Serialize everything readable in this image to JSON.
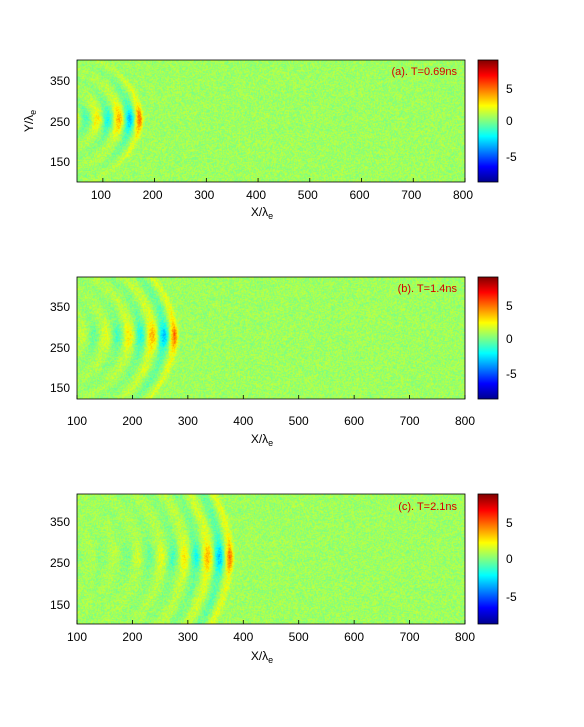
{
  "chart_data": [
    {
      "type": "heatmap",
      "annotation": "(a). T=0.69ns",
      "xlabel": "X/λ",
      "xlabel_sub": "e",
      "ylabel": "Y/λ",
      "ylabel_sub": "e",
      "xlim": [
        50,
        800
      ],
      "ylim": [
        100,
        400
      ],
      "xticks": [
        "100",
        "200",
        "300",
        "400",
        "500",
        "600",
        "700",
        "800"
      ],
      "yticks": [
        "150",
        "250",
        "350"
      ],
      "colorbar": {
        "range": [
          -9,
          9
        ],
        "ticks": [
          "5",
          "0",
          "-5"
        ]
      },
      "wave": {
        "source_x": 0,
        "source_y": 255,
        "front_x": 170,
        "wavelength": 42,
        "max_amplitude": 9
      }
    },
    {
      "type": "heatmap",
      "annotation": "(b). T=1.4ns",
      "xlabel": "X/λ",
      "xlabel_sub": "e",
      "xlim": [
        100,
        800
      ],
      "ylim": [
        100,
        400
      ],
      "xticks": [
        "100",
        "200",
        "300",
        "400",
        "500",
        "600",
        "700",
        "800"
      ],
      "yticks": [
        "150",
        "250",
        "350"
      ],
      "colorbar": {
        "range": [
          -9,
          9
        ],
        "ticks": [
          "5",
          "0",
          "-5"
        ]
      },
      "wave": {
        "source_x": 0,
        "source_y": 255,
        "front_x": 275,
        "wavelength": 42,
        "max_amplitude": 9
      }
    },
    {
      "type": "heatmap",
      "annotation": "(c). T=2.1ns",
      "xlabel": "X/λ",
      "xlabel_sub": "e",
      "xlim": [
        100,
        800
      ],
      "ylim": [
        100,
        400
      ],
      "xticks": [
        "100",
        "200",
        "300",
        "400",
        "500",
        "600",
        "700",
        "800"
      ],
      "yticks": [
        "150",
        "250",
        "350"
      ],
      "colorbar": {
        "range": [
          -9,
          9
        ],
        "ticks": [
          "5",
          "0",
          "-5"
        ]
      },
      "wave": {
        "source_x": 0,
        "source_y": 255,
        "front_x": 375,
        "wavelength": 42,
        "max_amplitude": 9
      }
    }
  ]
}
